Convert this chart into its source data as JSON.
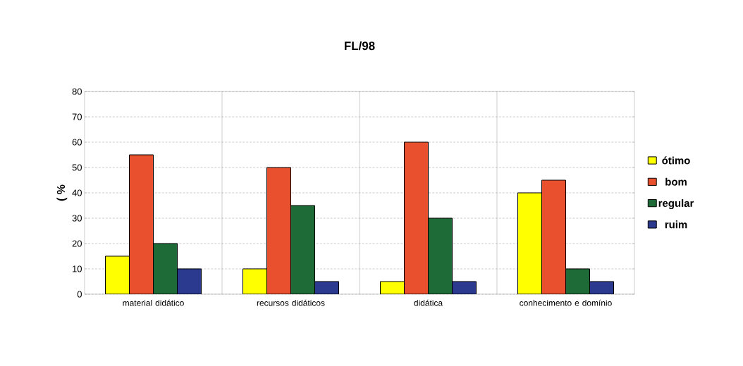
{
  "chart_data": {
    "type": "bar",
    "title": "FL/98",
    "ylabel": "( %",
    "categories": [
      "material didático",
      "recursos didáticos",
      "didática",
      "conhecimento e domínio"
    ],
    "series": [
      {
        "name": "ótimo",
        "color": "#ffff00",
        "values": [
          15,
          10,
          5,
          40
        ]
      },
      {
        "name": "bom",
        "color": "#e8502e",
        "values": [
          55,
          50,
          60,
          45
        ]
      },
      {
        "name": "regular",
        "color": "#1e6b38",
        "values": [
          20,
          35,
          30,
          10
        ]
      },
      {
        "name": "ruim",
        "color": "#2b3a8f",
        "values": [
          10,
          5,
          5,
          5
        ]
      }
    ],
    "ylim": [
      0,
      80
    ],
    "yticks": [
      0,
      10,
      20,
      30,
      40,
      50,
      60,
      70,
      80
    ],
    "grid": true,
    "legend": "right"
  }
}
